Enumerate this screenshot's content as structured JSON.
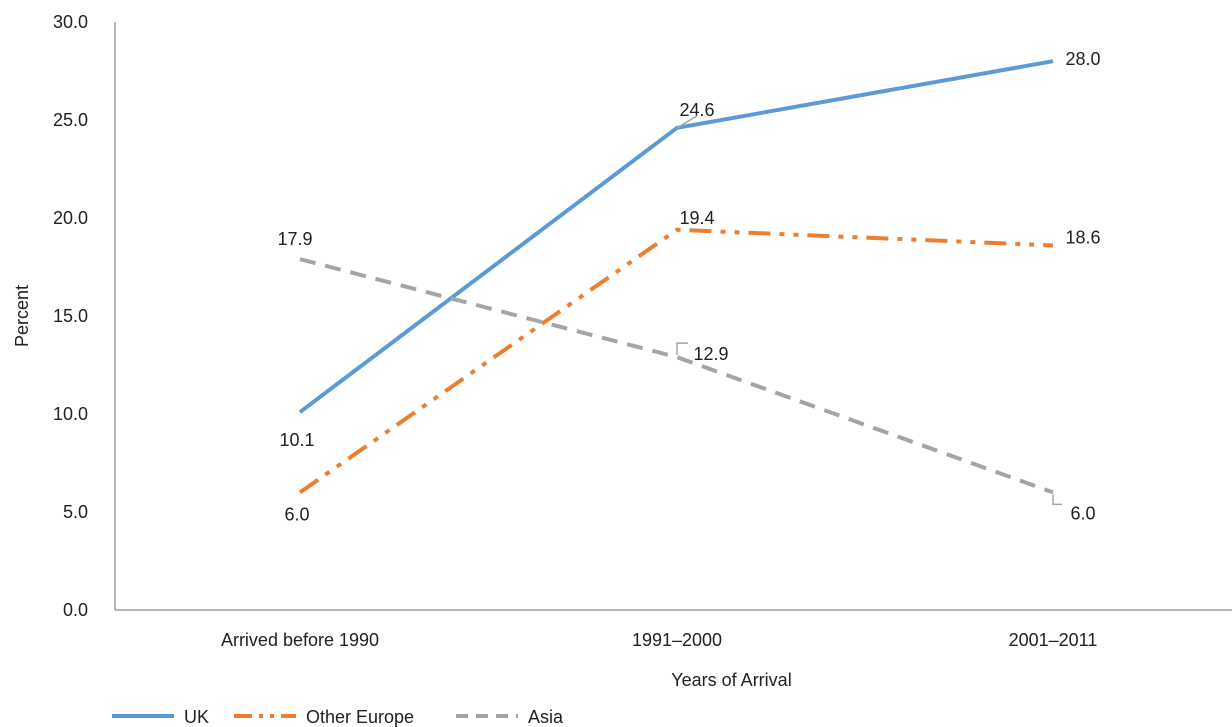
{
  "chart_data": {
    "type": "line",
    "categories": [
      "Arrived before 1990",
      "1991–2000",
      "2001–2011"
    ],
    "series": [
      {
        "name": "UK",
        "values": [
          10.1,
          24.6,
          28.0
        ],
        "labels": [
          "10.1",
          "24.6",
          "28.0"
        ],
        "color": "#5b9bd5",
        "dash": "solid"
      },
      {
        "name": "Other Europe",
        "values": [
          6.0,
          19.4,
          18.6
        ],
        "labels": [
          "6.0",
          "19.4",
          "18.6"
        ],
        "color": "#ed7d31",
        "dash": "dash-dot-dot"
      },
      {
        "name": "Asia",
        "values": [
          17.9,
          12.9,
          6.0
        ],
        "labels": [
          "17.9",
          "12.9",
          "6.0"
        ],
        "color": "#a5a5a5",
        "dash": "dash"
      }
    ],
    "title": "",
    "xlabel": "Years of Arrival",
    "ylabel": "Percent",
    "ylim": [
      0,
      30
    ],
    "yticks": [
      "0.0",
      "5.0",
      "10.0",
      "15.0",
      "20.0",
      "25.0",
      "30.0"
    ],
    "grid": false,
    "legend": "bottom-left"
  }
}
